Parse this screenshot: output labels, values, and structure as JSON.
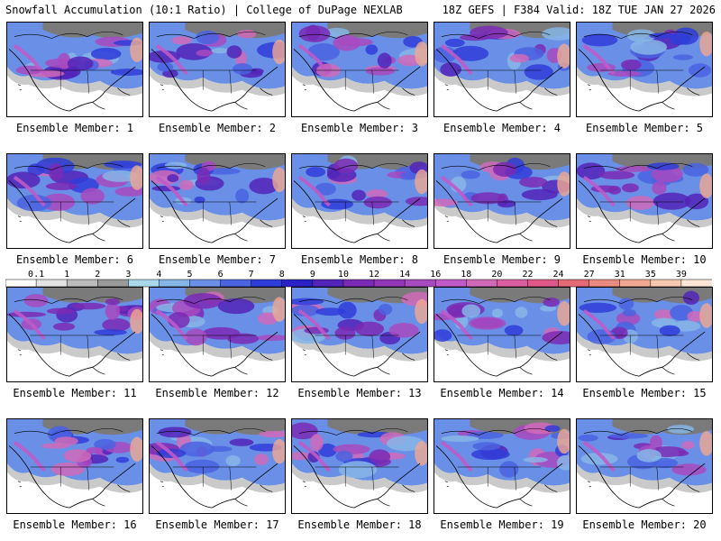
{
  "header": {
    "left": "Snowfall Accumulation (10:1 Ratio) | College of DuPage NEXLAB",
    "right": "18Z GEFS | F384 Valid: 18Z TUE JAN 27 2026"
  },
  "members": [
    "Ensemble Member: 1",
    "Ensemble Member: 2",
    "Ensemble Member: 3",
    "Ensemble Member: 4",
    "Ensemble Member: 5",
    "Ensemble Member: 6",
    "Ensemble Member: 7",
    "Ensemble Member: 8",
    "Ensemble Member: 9",
    "Ensemble Member: 10",
    "Ensemble Member: 11",
    "Ensemble Member: 12",
    "Ensemble Member: 13",
    "Ensemble Member: 14",
    "Ensemble Member: 15",
    "Ensemble Member: 16",
    "Ensemble Member: 17",
    "Ensemble Member: 18",
    "Ensemble Member: 19",
    "Ensemble Member: 20"
  ],
  "legend": {
    "labels": [
      "0.1",
      "1",
      "2",
      "3",
      "4",
      "5",
      "6",
      "7",
      "8",
      "9",
      "10",
      "12",
      "14",
      "16",
      "18",
      "20",
      "22",
      "24",
      "27",
      "31",
      "35",
      "39"
    ],
    "colors": [
      "#ffffff",
      "#e4e4e4",
      "#bdbdbd",
      "#9a9a9a",
      "#a9d8e8",
      "#86b6e6",
      "#6a8fe6",
      "#4a63e0",
      "#2f3dd8",
      "#2a22c4",
      "#5224b8",
      "#7a2ab4",
      "#9236b8",
      "#a84ac0",
      "#c05ac8",
      "#d06ab8",
      "#da5fa0",
      "#e05888",
      "#e46a78",
      "#ea8a80",
      "#f0a890",
      "#f6c8b0",
      "#fbe6d8"
    ]
  }
}
